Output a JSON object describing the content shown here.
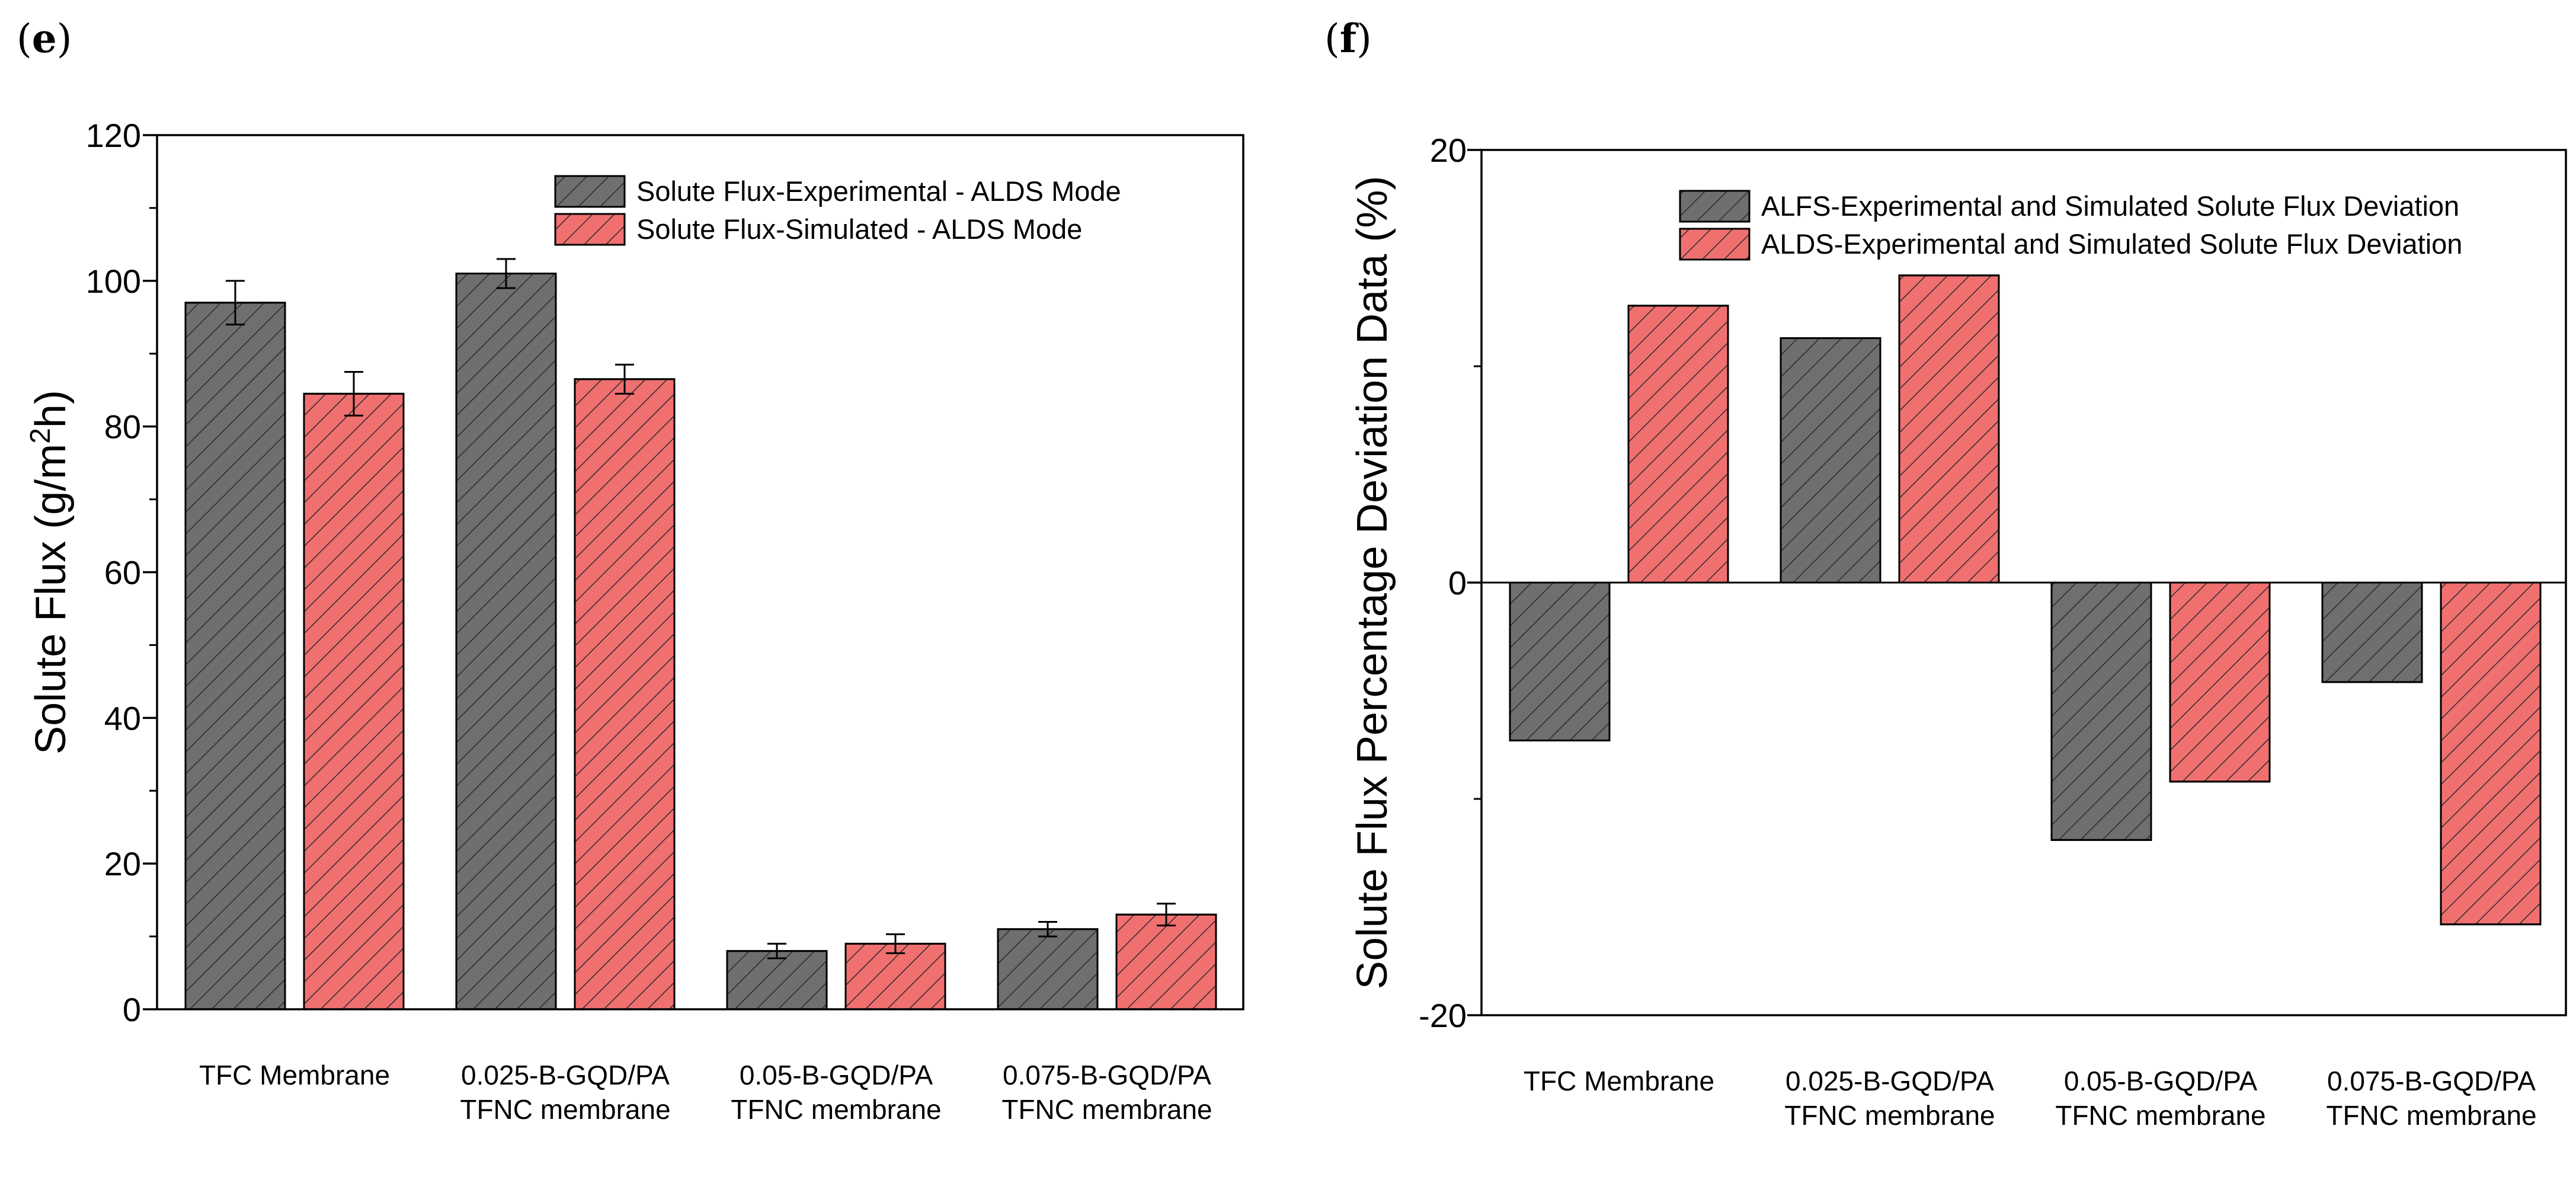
{
  "colors": {
    "experimental": "#6f6f6f",
    "simulated": "#f07070",
    "hatch": "#2a2a2a",
    "axis": "#000000"
  },
  "chart_data": [
    {
      "panel": "(e)",
      "type": "bar",
      "title": "",
      "xlabel": "",
      "ylabel": "Solute Flux (g/m²h)",
      "ylim": [
        0,
        120
      ],
      "yticks": [
        0,
        20,
        40,
        60,
        80,
        100,
        120
      ],
      "categories": [
        [
          "TFC Membrane"
        ],
        [
          "0.025-B-GQD/PA",
          "TFNC membrane"
        ],
        [
          "0.05-B-GQD/PA",
          "TFNC membrane"
        ],
        [
          "0.075-B-GQD/PA",
          "TFNC membrane"
        ]
      ],
      "series": [
        {
          "name": "Solute Flux-Experimental - ALDS Mode",
          "color_key": "experimental",
          "values": [
            97,
            101,
            8,
            11
          ],
          "errors": [
            3,
            2,
            1,
            1
          ]
        },
        {
          "name": "Solute Flux-Simulated - ALDS Mode",
          "color_key": "simulated",
          "values": [
            84.5,
            86.5,
            9,
            13
          ],
          "errors": [
            3,
            2,
            1.3,
            1.5
          ]
        }
      ],
      "legend_position": "top-right"
    },
    {
      "panel": "(f)",
      "type": "bar",
      "title": "",
      "xlabel": "",
      "ylabel": "Solute Flux Percentage Deviation Data (%)",
      "ylim": [
        -20,
        20
      ],
      "yticks": [
        -20,
        0,
        20
      ],
      "categories": [
        [
          "TFC Membrane"
        ],
        [
          "0.025-B-GQD/PA",
          "TFNC membrane"
        ],
        [
          "0.05-B-GQD/PA",
          "TFNC membrane"
        ],
        [
          "0.075-B-GQD/PA",
          "TFNC membrane"
        ]
      ],
      "series": [
        {
          "name": "ALFS-Experimental and Simulated Solute Flux Deviation",
          "color_key": "experimental",
          "values": [
            -7.3,
            11.3,
            -11.9,
            -4.6
          ]
        },
        {
          "name": "ALDS-Experimental and Simulated Solute Flux Deviation",
          "color_key": "simulated",
          "values": [
            12.8,
            14.2,
            -9.2,
            -15.8
          ]
        }
      ],
      "legend_position": "top-right"
    }
  ]
}
